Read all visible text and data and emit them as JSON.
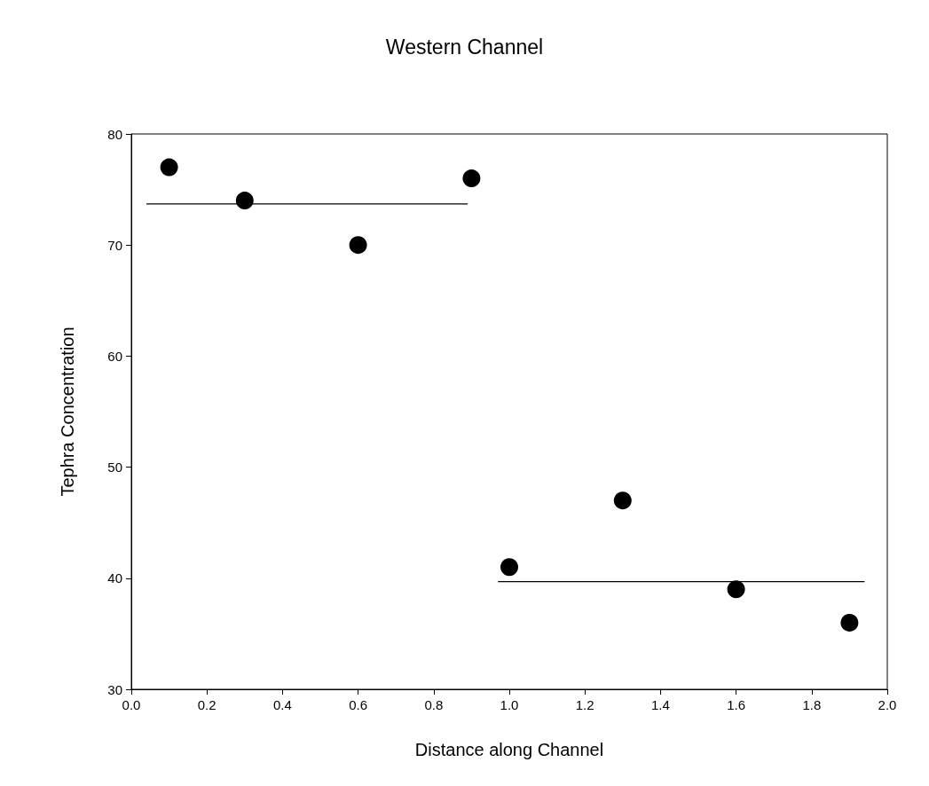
{
  "chart_data": {
    "type": "scatter",
    "title": "Western Channel",
    "xlabel": "Distance along Channel",
    "ylabel": "Tephra Concentration",
    "x": [
      0.1,
      0.3,
      0.6,
      0.9,
      1.0,
      1.3,
      1.6,
      1.9
    ],
    "marker": "circle",
    "series": [
      {
        "color": "#000000",
        "values": [
          77,
          74,
          70,
          76,
          41,
          47,
          39,
          36
        ]
      },
      {
        "type": "line",
        "color": "#000000",
        "marker": "none",
        "x": [
          0.04,
          0.89
        ],
        "values": [
          73.7,
          73.7
        ]
      },
      {
        "type": "line",
        "color": "#000000",
        "marker": "none",
        "x": [
          0.97,
          1.94
        ],
        "values": [
          39.7,
          39.7
        ]
      }
    ],
    "xlim": [
      0,
      2
    ],
    "ylim": [
      30,
      80
    ],
    "xticks": [
      {
        "value": 0,
        "label": "0.0"
      },
      {
        "value": 0.2,
        "label": "0.2"
      },
      {
        "value": 0.4,
        "label": "0.4"
      },
      {
        "value": 0.6,
        "label": "0.6"
      },
      {
        "value": 0.8,
        "label": "0.8"
      },
      {
        "value": 1,
        "label": "1.0"
      },
      {
        "value": 1.2,
        "label": "1.2"
      },
      {
        "value": 1.4,
        "label": "1.4"
      },
      {
        "value": 1.6,
        "label": "1.6"
      },
      {
        "value": 1.8,
        "label": "1.8"
      },
      {
        "value": 2,
        "label": "2.0"
      }
    ],
    "yticks": [
      30,
      40,
      50,
      60,
      70,
      80
    ]
  }
}
